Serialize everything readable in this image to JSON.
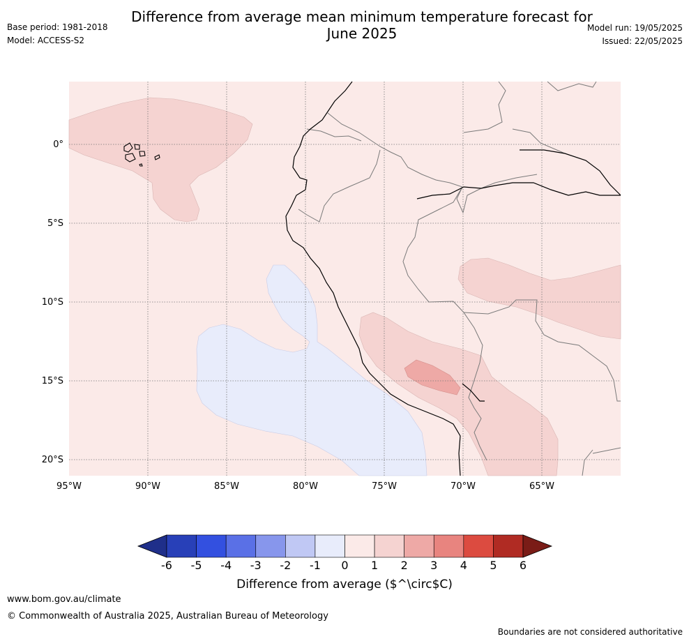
{
  "title_line1": "Difference from average mean minimum temperature forecast for",
  "title_line2": "June 2025",
  "meta_left": [
    "Base period: 1981-2018",
    "Model: ACCESS-S2"
  ],
  "meta_right": [
    "Model run: 19/05/2025",
    "Issued: 22/05/2025"
  ],
  "map": {
    "lon_labels": [
      "95°W",
      "90°W",
      "85°W",
      "80°W",
      "75°W",
      "70°W",
      "65°W"
    ],
    "lat_labels": [
      "0°",
      "5°S",
      "10°S",
      "15°S",
      "20°S"
    ],
    "background_color": "#fbeae8"
  },
  "colorbar": {
    "ticks": [
      "-6",
      "-5",
      "-4",
      "-3",
      "-2",
      "-1",
      "0",
      "1",
      "2",
      "3",
      "4",
      "5",
      "6"
    ],
    "colors": [
      "#1f2f8a",
      "#2840b8",
      "#3350e0",
      "#5a70e6",
      "#8796ec",
      "#c0c8f4",
      "#e8ecfb",
      "#fbeae8",
      "#f5d3d1",
      "#eea9a6",
      "#e8847f",
      "#dc4b40",
      "#b02b23",
      "#7a1c17"
    ],
    "label": "Difference from average ($^\\circ$C)"
  },
  "footer": {
    "url": "www.bom.gov.au/climate",
    "copyright": "© Commonwealth of Australia 2025, Australian Bureau of Meteorology",
    "note": "Boundaries are not considered authoritative"
  }
}
